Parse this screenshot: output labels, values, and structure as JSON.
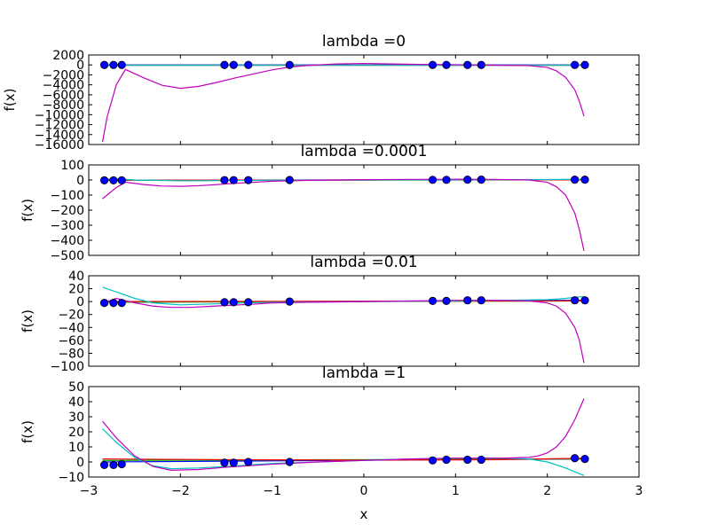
{
  "chart_data": {
    "type": "line",
    "xlabel": "x",
    "xlim": [
      -3,
      3
    ],
    "x_ticks": [
      -3,
      -2,
      -1,
      0,
      1,
      2,
      3
    ],
    "x_tick_labels": [
      "−3",
      "−2",
      "−1",
      "0",
      "1",
      "2",
      "3"
    ],
    "grid": false,
    "colors": [
      "#0000ff",
      "#00aa00",
      "#ff0000",
      "#00bfbf",
      "#bf00bf"
    ],
    "panels": [
      {
        "title": "lambda =0",
        "ylabel": "f(x)",
        "ylim": [
          -16000,
          2000
        ],
        "y_ticks": [
          2000,
          0,
          -2000,
          -4000,
          -6000,
          -8000,
          -10000,
          -12000,
          -14000,
          -16000
        ],
        "y_tick_labels": [
          "2000",
          "0",
          "−2000",
          "−4000",
          "−6000",
          "−8000",
          "−10000",
          "−12000",
          "−14000",
          "−16000"
        ],
        "points": {
          "x": [
            -2.83,
            -2.73,
            -2.64,
            -1.52,
            -1.42,
            -1.26,
            -0.81,
            0.75,
            0.9,
            1.13,
            1.28,
            2.3,
            2.41
          ],
          "y": [
            0,
            0,
            0,
            0,
            0,
            0,
            0,
            0,
            0,
            0,
            0,
            0,
            0
          ]
        },
        "series": [
          {
            "x": [
              -2.85,
              2.4
            ],
            "y": [
              0,
              0
            ]
          },
          {
            "x": [
              -2.85,
              2.4
            ],
            "y": [
              -50,
              -50
            ]
          },
          {
            "x": [
              -2.85,
              2.4
            ],
            "y": [
              -60,
              -60
            ]
          },
          {
            "x": [
              -2.85,
              2.4
            ],
            "y": [
              -80,
              -80
            ]
          },
          {
            "x": [
              -2.85,
              -2.8,
              -2.7,
              -2.6,
              -2.4,
              -2.2,
              -2.0,
              -1.8,
              -1.6,
              -1.4,
              -1.2,
              -1.0,
              -0.8,
              -0.6,
              -0.3,
              0,
              0.3,
              0.6,
              1.0,
              1.4,
              1.8,
              2.0,
              2.1,
              2.2,
              2.3,
              2.35,
              2.4
            ],
            "y": [
              -15500,
              -10500,
              -4000,
              -900,
              -2600,
              -4100,
              -4700,
              -4300,
              -3500,
              -2600,
              -1800,
              -1000,
              -400,
              -100,
              200,
              300,
              200,
              100,
              50,
              -50,
              -150,
              -500,
              -1200,
              -2500,
              -5000,
              -7300,
              -10300
            ]
          }
        ]
      },
      {
        "title": "lambda =0.0001",
        "ylabel": "f(x)",
        "ylim": [
          -500,
          100
        ],
        "y_ticks": [
          100,
          0,
          -100,
          -200,
          -300,
          -400,
          -500
        ],
        "y_tick_labels": [
          "100",
          "0",
          "−100",
          "−200",
          "−300",
          "−400",
          "−500"
        ],
        "points": {
          "x": [
            -2.83,
            -2.73,
            -2.64,
            -1.52,
            -1.42,
            -1.26,
            -0.81,
            0.75,
            0.9,
            1.13,
            1.28,
            2.3,
            2.41
          ],
          "y": [
            -2,
            -2,
            -2,
            -1,
            -1,
            -1,
            0,
            1,
            1,
            2,
            2,
            2,
            2
          ]
        },
        "series": [
          {
            "x": [
              -2.85,
              2.4
            ],
            "y": [
              -1,
              2
            ]
          },
          {
            "x": [
              -2.85,
              2.4
            ],
            "y": [
              -2,
              1
            ]
          },
          {
            "x": [
              -2.85,
              2.4
            ],
            "y": [
              -1,
              1
            ]
          },
          {
            "x": [
              -2.85,
              -2.7,
              -2.5,
              -2.0,
              -1.5,
              -1.0,
              0,
              1.0,
              1.5,
              2.0,
              2.4
            ],
            "y": [
              5,
              8,
              0,
              -5,
              -4,
              -1,
              0,
              1,
              2,
              3,
              5
            ]
          },
          {
            "x": [
              -2.85,
              -2.8,
              -2.7,
              -2.6,
              -2.4,
              -2.2,
              -2.0,
              -1.8,
              -1.6,
              -1.4,
              -1.2,
              -1.0,
              -0.6,
              0,
              0.6,
              1.0,
              1.4,
              1.8,
              2.0,
              2.1,
              2.2,
              2.3,
              2.35,
              2.4
            ],
            "y": [
              -125,
              -100,
              -50,
              -15,
              -30,
              -40,
              -42,
              -38,
              -30,
              -22,
              -15,
              -8,
              -2,
              2,
              4,
              5,
              4,
              0,
              -15,
              -45,
              -100,
              -220,
              -330,
              -470
            ]
          }
        ]
      },
      {
        "title": "lambda =0.01",
        "ylabel": "f(x)",
        "ylim": [
          -100,
          40
        ],
        "y_ticks": [
          40,
          20,
          0,
          -20,
          -40,
          -60,
          -80,
          -100
        ],
        "y_tick_labels": [
          "40",
          "20",
          "0",
          "−20",
          "−40",
          "−60",
          "−80",
          "−100"
        ],
        "points": {
          "x": [
            -2.83,
            -2.73,
            -2.64,
            -1.52,
            -1.42,
            -1.26,
            -0.81,
            0.75,
            0.9,
            1.13,
            1.28,
            2.3,
            2.41
          ],
          "y": [
            -2,
            -2,
            -2,
            -1,
            -1,
            -1,
            0,
            1,
            1,
            2,
            2,
            2,
            2
          ]
        },
        "series": [
          {
            "x": [
              -2.85,
              2.4
            ],
            "y": [
              -1,
              2
            ]
          },
          {
            "x": [
              -2.85,
              2.4
            ],
            "y": [
              -1,
              1
            ]
          },
          {
            "x": [
              -2.85,
              2.4
            ],
            "y": [
              0,
              1
            ]
          },
          {
            "x": [
              -2.85,
              -2.7,
              -2.5,
              -2.3,
              -2.0,
              -1.5,
              -1.0,
              0,
              1.0,
              1.5,
              2.0,
              2.2,
              2.4
            ],
            "y": [
              22,
              15,
              5,
              -2,
              -5,
              -3,
              -1,
              0,
              1,
              2,
              3,
              5,
              8
            ]
          },
          {
            "x": [
              -2.85,
              -2.8,
              -2.7,
              -2.5,
              -2.3,
              -2.1,
              -1.9,
              -1.7,
              -1.5,
              -1.2,
              -1.0,
              -0.6,
              0,
              0.6,
              1.0,
              1.4,
              1.8,
              2.0,
              2.1,
              2.2,
              2.3,
              2.35,
              2.4
            ],
            "y": [
              -5,
              0,
              5,
              -2,
              -7,
              -9,
              -9,
              -7.5,
              -6,
              -4,
              -2,
              -1,
              0,
              1,
              2,
              2,
              1,
              -2,
              -7,
              -18,
              -40,
              -60,
              -95
            ]
          }
        ]
      },
      {
        "title": "lambda =1",
        "ylabel": "f(x)",
        "ylim": [
          -10,
          50
        ],
        "y_ticks": [
          50,
          40,
          30,
          20,
          10,
          0,
          -10
        ],
        "y_tick_labels": [
          "50",
          "40",
          "30",
          "20",
          "10",
          "0",
          "−10"
        ],
        "points": {
          "x": [
            -2.83,
            -2.73,
            -2.64,
            -1.52,
            -1.42,
            -1.26,
            -0.81,
            0.75,
            0.9,
            1.13,
            1.28,
            2.3,
            2.41
          ],
          "y": [
            -2,
            -2,
            -1.5,
            -0.5,
            -0.5,
            0,
            0,
            1,
            1.5,
            1.5,
            1.5,
            2.5,
            2
          ]
        },
        "series": [
          {
            "x": [
              -2.85,
              2.4
            ],
            "y": [
              0,
              2
            ]
          },
          {
            "x": [
              -2.85,
              2.4
            ],
            "y": [
              1,
              2
            ]
          },
          {
            "x": [
              -2.85,
              -1.5,
              0,
              1.5,
              2.4
            ],
            "y": [
              2,
              1.5,
              1.2,
              1.5,
              2.5
            ]
          },
          {
            "x": [
              -2.85,
              -2.7,
              -2.5,
              -2.3,
              -2.1,
              -1.8,
              -1.5,
              -1.0,
              -0.5,
              0,
              0.5,
              1.0,
              1.5,
              1.8,
              2.0,
              2.2,
              2.4
            ],
            "y": [
              22,
              13,
              3,
              -2.5,
              -4.5,
              -4,
              -3,
              -1,
              0,
              1,
              2,
              2.5,
              2.5,
              2,
              0,
              -4,
              -9
            ]
          },
          {
            "x": [
              -2.85,
              -2.7,
              -2.5,
              -2.3,
              -2.1,
              -1.8,
              -1.5,
              -1.0,
              -0.5,
              0,
              0.5,
              1.0,
              1.5,
              1.8,
              1.9,
              2.0,
              2.1,
              2.2,
              2.3,
              2.4
            ],
            "y": [
              27,
              16,
              4,
              -3,
              -5.5,
              -5,
              -3.5,
              -1.5,
              0,
              1,
              2,
              2.5,
              2.5,
              3,
              4,
              6,
              10,
              17,
              28,
              42
            ]
          }
        ]
      }
    ]
  }
}
